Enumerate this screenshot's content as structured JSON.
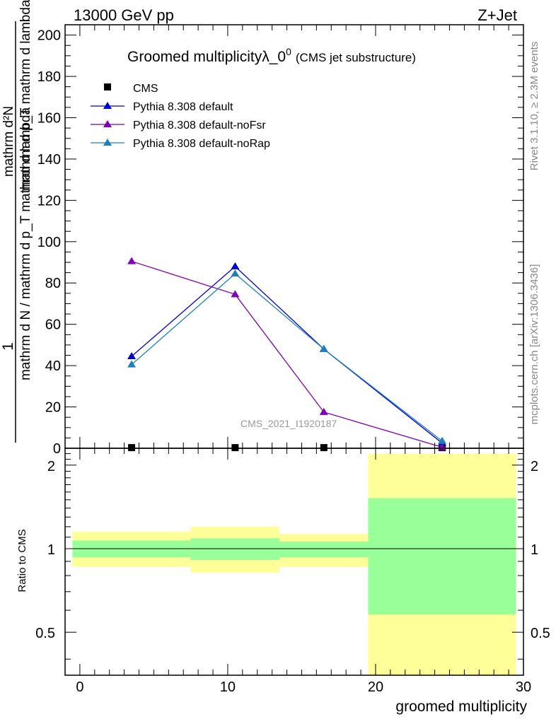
{
  "header": {
    "left": "13000 GeV pp",
    "right": "Z+Jet"
  },
  "side_labels": {
    "rivet": "Rivet 3.1.10, ≥ 2.3M events",
    "mcplots": "mcplots.cern.ch [arXiv:1306.3436]"
  },
  "watermark": "CMS_2021_I1920187",
  "chart_data": [
    {
      "type": "line",
      "title_main": "Groomed multiplicityλ_0",
      "title_sup": "0",
      "title_suffix": "(CMS jet substructure)",
      "ylabel_top": "1",
      "ylabel_lines": [
        "mathrm d N / mathrm d p_T mathrm d lambda",
        "mathrm d²N",
        "mathrm d p_T mathrm d lambda"
      ],
      "ylim": [
        0,
        205
      ],
      "yticks": [
        0,
        20,
        40,
        60,
        80,
        100,
        120,
        140,
        160,
        180,
        200
      ],
      "xlim": [
        -1,
        30
      ],
      "legend_position": "top-left",
      "series": [
        {
          "name": "CMS",
          "color": "#000000",
          "marker": "square",
          "x": [
            3.5,
            10.5,
            16.5,
            24.5
          ],
          "values": [
            0.3,
            0.3,
            0.3,
            0.3
          ]
        },
        {
          "name": "Pythia 8.308 default",
          "color": "#0000cc",
          "marker": "triangle",
          "x": [
            3.5,
            10.5,
            16.5,
            24.5
          ],
          "values": [
            44.5,
            88,
            48,
            2.5
          ]
        },
        {
          "name": "Pythia 8.308 default-noFsr",
          "color": "#7f00b2",
          "marker": "triangle",
          "x": [
            3.5,
            10.5,
            16.5,
            24.5
          ],
          "values": [
            90.5,
            74.5,
            17.5,
            0.5
          ]
        },
        {
          "name": "Pythia 8.308 default-noRap",
          "color": "#1f80b8",
          "marker": "triangle",
          "x": [
            3.5,
            10.5,
            16.5,
            24.5
          ],
          "values": [
            40.5,
            84.5,
            48,
            3.5
          ]
        }
      ]
    },
    {
      "type": "area",
      "ylabel": "Ratio to CMS",
      "ylim": [
        0.35,
        2.3
      ],
      "yticks": [
        0.5,
        1,
        2
      ],
      "ytick_labels": [
        "0.5",
        "1",
        "2"
      ],
      "xlabel": "groomed multiplicity",
      "xlim": [
        -1,
        30
      ],
      "xticks": [
        0,
        10,
        20,
        30
      ],
      "xtick_labels": [
        "0",
        "10",
        "20",
        "30"
      ],
      "bands": [
        {
          "x0": -0.5,
          "x1": 7.5,
          "inner": [
            0.93,
            1.07
          ],
          "outer": [
            0.86,
            1.15
          ]
        },
        {
          "x0": 7.5,
          "x1": 13.5,
          "inner": [
            0.91,
            1.09
          ],
          "outer": [
            0.82,
            1.2
          ]
        },
        {
          "x0": 13.5,
          "x1": 19.5,
          "inner": [
            0.93,
            1.06
          ],
          "outer": [
            0.86,
            1.13
          ]
        },
        {
          "x0": 19.5,
          "x1": 29.5,
          "inner": [
            0.58,
            1.52
          ],
          "outer": [
            0.35,
            2.2
          ]
        }
      ],
      "band_colors": {
        "inner": "#99ff99",
        "outer": "#ffff99"
      }
    }
  ]
}
